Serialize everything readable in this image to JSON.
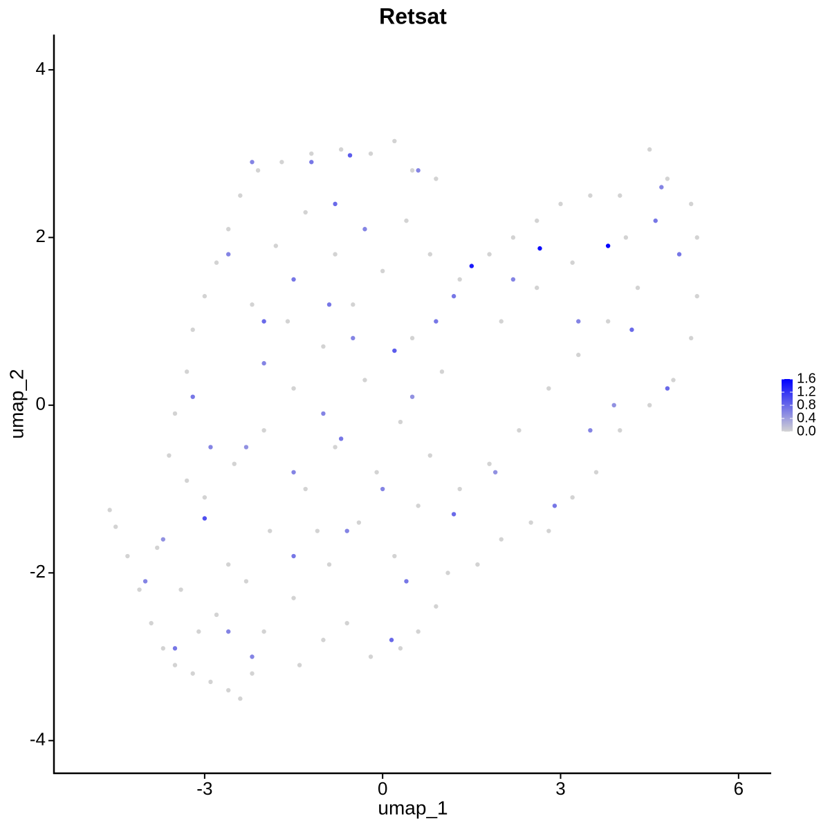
{
  "chart_data": {
    "type": "scatter",
    "title": "Retsat",
    "x_label": "umap_1",
    "y_label": "umap_2",
    "xlim": [
      -5.54,
      6.55
    ],
    "ylim": [
      -4.39,
      4.42
    ],
    "xticks": [
      -3,
      0,
      3,
      6
    ],
    "yticks": [
      -4,
      -2,
      0,
      2,
      4
    ],
    "low_color": "#d3d3d3",
    "high_color": "#0000ff",
    "clim": [
      0,
      1.6
    ],
    "cticks": [
      {
        "value": 0,
        "label": "0.0"
      },
      0.4,
      0.8,
      1.2,
      1.6
    ],
    "x": [
      -4.6,
      -4.5,
      -4.3,
      -4.1,
      -3.9,
      -3.7,
      -3.5,
      -3.2,
      -2.9,
      -2.6,
      -2.4,
      -2.2,
      -1.4,
      -1.0,
      -0.6,
      -0.2,
      0.3,
      0.6,
      0.9,
      1.1,
      1.6,
      2.0,
      2.5,
      2.8,
      3.2,
      3.6,
      4.0,
      4.5,
      4.9,
      5.2,
      5.3,
      5.3,
      5.2,
      4.8,
      4.5,
      4.0,
      3.5,
      3.0,
      2.6,
      2.2,
      1.8,
      1.3,
      0.8,
      0.9,
      0.5,
      0.2,
      -0.2,
      -0.7,
      -1.2,
      -1.7,
      -2.1,
      -2.4,
      -2.6,
      -2.8,
      -3.0,
      -3.2,
      -3.3,
      -3.5,
      -3.6,
      -3.3,
      -3.0,
      -2.5,
      -2.0,
      -1.5,
      -1.0,
      -0.5,
      0.0,
      0.4,
      -1.8,
      -1.3,
      -0.8,
      -2.2,
      -1.6,
      -0.3,
      0.3,
      0.8,
      1.3,
      1.8,
      2.3,
      2.8,
      3.3,
      3.8,
      4.3,
      2.0,
      2.6,
      3.2,
      4.1,
      1.0,
      0.5,
      -0.8,
      -1.3,
      -1.9,
      -2.6,
      -3.4,
      -3.8,
      -2.8,
      -2.0,
      -1.5,
      -0.9,
      -0.4,
      0.2,
      0.6,
      -0.1,
      -1.1,
      -2.3,
      -3.1,
      1.5,
      2.65,
      3.8,
      -3.0,
      -0.55,
      0.2,
      -2.0,
      -0.8,
      -2.2,
      -1.2,
      0.6,
      -2.6,
      -1.5,
      -0.5,
      -3.2,
      -2.9,
      -2.3,
      -1.5,
      -0.7,
      0.5,
      1.2,
      2.2,
      3.3,
      4.2,
      4.8,
      5.0,
      4.7,
      4.6,
      3.5,
      2.9,
      1.2,
      0.4,
      0.15,
      -0.6,
      -1.5,
      -2.6,
      -3.5,
      -2.2,
      -4.0,
      -3.7,
      0.0,
      -1.0,
      1.9,
      3.9,
      -2.0,
      -0.9,
      -0.3,
      0.9
    ],
    "y": [
      -1.25,
      -1.45,
      -1.8,
      -2.2,
      -2.6,
      -2.9,
      -3.1,
      -3.2,
      -3.3,
      -3.4,
      -3.5,
      -3.2,
      -3.1,
      -2.8,
      -2.6,
      -3.0,
      -2.9,
      -2.7,
      -2.4,
      -2.0,
      -1.9,
      -1.6,
      -1.4,
      -1.5,
      -1.1,
      -0.8,
      -0.3,
      0.0,
      0.3,
      0.8,
      1.3,
      2.0,
      2.4,
      2.7,
      3.05,
      2.5,
      2.5,
      2.4,
      2.2,
      2.0,
      1.8,
      1.5,
      1.8,
      2.7,
      2.8,
      3.15,
      3.0,
      3.05,
      3.0,
      2.9,
      2.8,
      2.5,
      2.1,
      1.7,
      1.3,
      0.9,
      0.4,
      -0.1,
      -0.6,
      -0.9,
      -1.1,
      -0.7,
      -0.3,
      0.2,
      0.7,
      1.2,
      1.6,
      2.2,
      1.9,
      2.3,
      1.8,
      1.2,
      1.0,
      0.3,
      -0.2,
      -0.6,
      -1.0,
      -0.7,
      -0.3,
      0.2,
      0.6,
      1.0,
      1.4,
      1.0,
      1.4,
      1.7,
      2.0,
      0.4,
      0.8,
      -0.5,
      -1.0,
      -1.5,
      -1.9,
      -2.2,
      -1.7,
      -2.5,
      -2.7,
      -2.3,
      -1.9,
      -1.4,
      -1.8,
      -1.2,
      -0.8,
      -1.5,
      -2.1,
      -2.7,
      1.66,
      1.87,
      1.9,
      -1.35,
      2.98,
      0.65,
      1.0,
      2.4,
      2.9,
      2.9,
      2.8,
      1.8,
      1.5,
      0.8,
      0.1,
      -0.5,
      -0.5,
      -0.8,
      -0.4,
      0.1,
      1.3,
      1.5,
      1.0,
      0.9,
      0.2,
      1.8,
      2.6,
      2.2,
      -0.3,
      -1.2,
      -1.3,
      -2.1,
      -2.8,
      -1.5,
      -1.8,
      -2.7,
      -2.9,
      -3.0,
      -2.1,
      -1.6,
      -1.0,
      -0.1,
      -0.8,
      0.0,
      0.5,
      1.2,
      2.1,
      1.0
    ],
    "expression": [
      0,
      0,
      0,
      0,
      0,
      0,
      0,
      0,
      0,
      0,
      0,
      0,
      0,
      0,
      0,
      0,
      0,
      0,
      0,
      0,
      0,
      0,
      0,
      0,
      0,
      0,
      0,
      0,
      0,
      0,
      0,
      0,
      0,
      0,
      0,
      0,
      0,
      0,
      0,
      0,
      0,
      0,
      0,
      0,
      0,
      0,
      0,
      0,
      0,
      0,
      0,
      0,
      0,
      0,
      0,
      0,
      0,
      0,
      0,
      0,
      0,
      0,
      0,
      0,
      0,
      0,
      0,
      0,
      0,
      0,
      0,
      0,
      0,
      0,
      0,
      0,
      0,
      0,
      0,
      0,
      0,
      0,
      0,
      0,
      0,
      0,
      0,
      0,
      0,
      0,
      0,
      0,
      0,
      0,
      0,
      0,
      0,
      0,
      0,
      0,
      0,
      0,
      0,
      0,
      0,
      0,
      1.4,
      1.5,
      1.6,
      1.0,
      0.9,
      0.9,
      0.8,
      0.8,
      0.6,
      0.7,
      0.6,
      0.6,
      0.7,
      0.6,
      0.7,
      0.6,
      0.5,
      0.6,
      0.7,
      0.5,
      0.7,
      0.6,
      0.6,
      0.8,
      0.8,
      0.7,
      0.6,
      0.7,
      0.6,
      0.7,
      0.8,
      0.7,
      0.8,
      0.6,
      0.7,
      0.6,
      0.7,
      0.6,
      0.6,
      0.5,
      0.6,
      0.6,
      0.5,
      0.5,
      0.6,
      0.7,
      0.6,
      0.7
    ]
  }
}
